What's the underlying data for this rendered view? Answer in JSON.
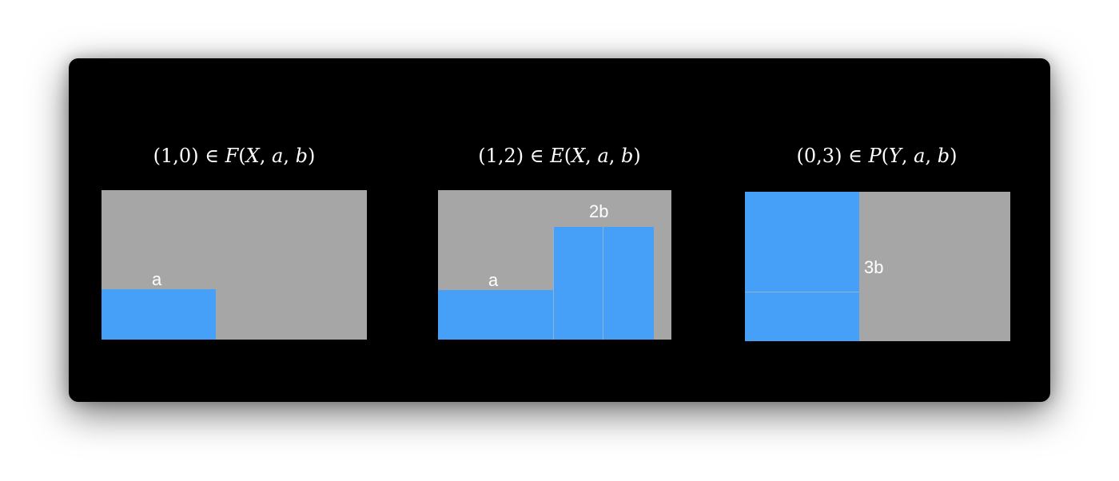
{
  "colors": {
    "background": "#000000",
    "panel": "#a6a6a6",
    "block": "#47a0f7",
    "text": "#ffffff"
  },
  "diagrams": [
    {
      "title": {
        "pair": "(1,0)",
        "rel": "∈",
        "set": "F",
        "args": [
          "X",
          "a",
          "b"
        ]
      },
      "labels": [
        "a"
      ]
    },
    {
      "title": {
        "pair": "(1,2)",
        "rel": "∈",
        "set": "E",
        "args": [
          "X",
          "a",
          "b"
        ]
      },
      "labels": [
        "a",
        "2b"
      ]
    },
    {
      "title": {
        "pair": "(0,3)",
        "rel": "∈",
        "set": "P",
        "args": [
          "Y",
          "a",
          "b"
        ]
      },
      "labels": [
        "3b"
      ]
    }
  ]
}
